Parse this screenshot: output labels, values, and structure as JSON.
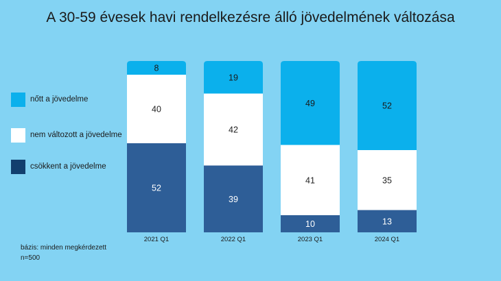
{
  "title": "A 30-59 évesek havi rendelkezésre álló jövedelmének változása",
  "footnote": {
    "line1": "bázis: minden megkérdezett",
    "line2": "n=500"
  },
  "colors": {
    "background": "#83d3f3",
    "nott": "#0bb0ec",
    "nem": "#ffffff",
    "csokkent": "#2e5e97"
  },
  "chart_data": {
    "type": "bar",
    "stacked": true,
    "categories": [
      "2021 Q1",
      "2022 Q1",
      "2023 Q1",
      "2024 Q1"
    ],
    "series": [
      {
        "name": "csökkent a jövedelme",
        "values": [
          52,
          39,
          10,
          13
        ],
        "color": "#2e5e97"
      },
      {
        "name": "nem változott a jövedelme",
        "values": [
          40,
          42,
          41,
          35
        ],
        "color": "#ffffff"
      },
      {
        "name": "nőtt a jövedelme",
        "values": [
          8,
          19,
          49,
          52
        ],
        "color": "#0bb0ec"
      }
    ],
    "title": "A 30-59 évesek havi rendelkezésre álló jövedelmének változása",
    "xlabel": "",
    "ylabel": "",
    "ylim": [
      0,
      100
    ],
    "grid": false,
    "legend_position": "left"
  },
  "legend": [
    {
      "label": "nőtt a jövedelme",
      "color": "#0bb0ec",
      "icon": "legend-swatch"
    },
    {
      "label": "nem változott a jövedelme",
      "color": "#ffffff",
      "icon": "legend-swatch"
    },
    {
      "label": "csökkent a jövedelme",
      "color": "#123f6e",
      "icon": "legend-swatch"
    }
  ]
}
